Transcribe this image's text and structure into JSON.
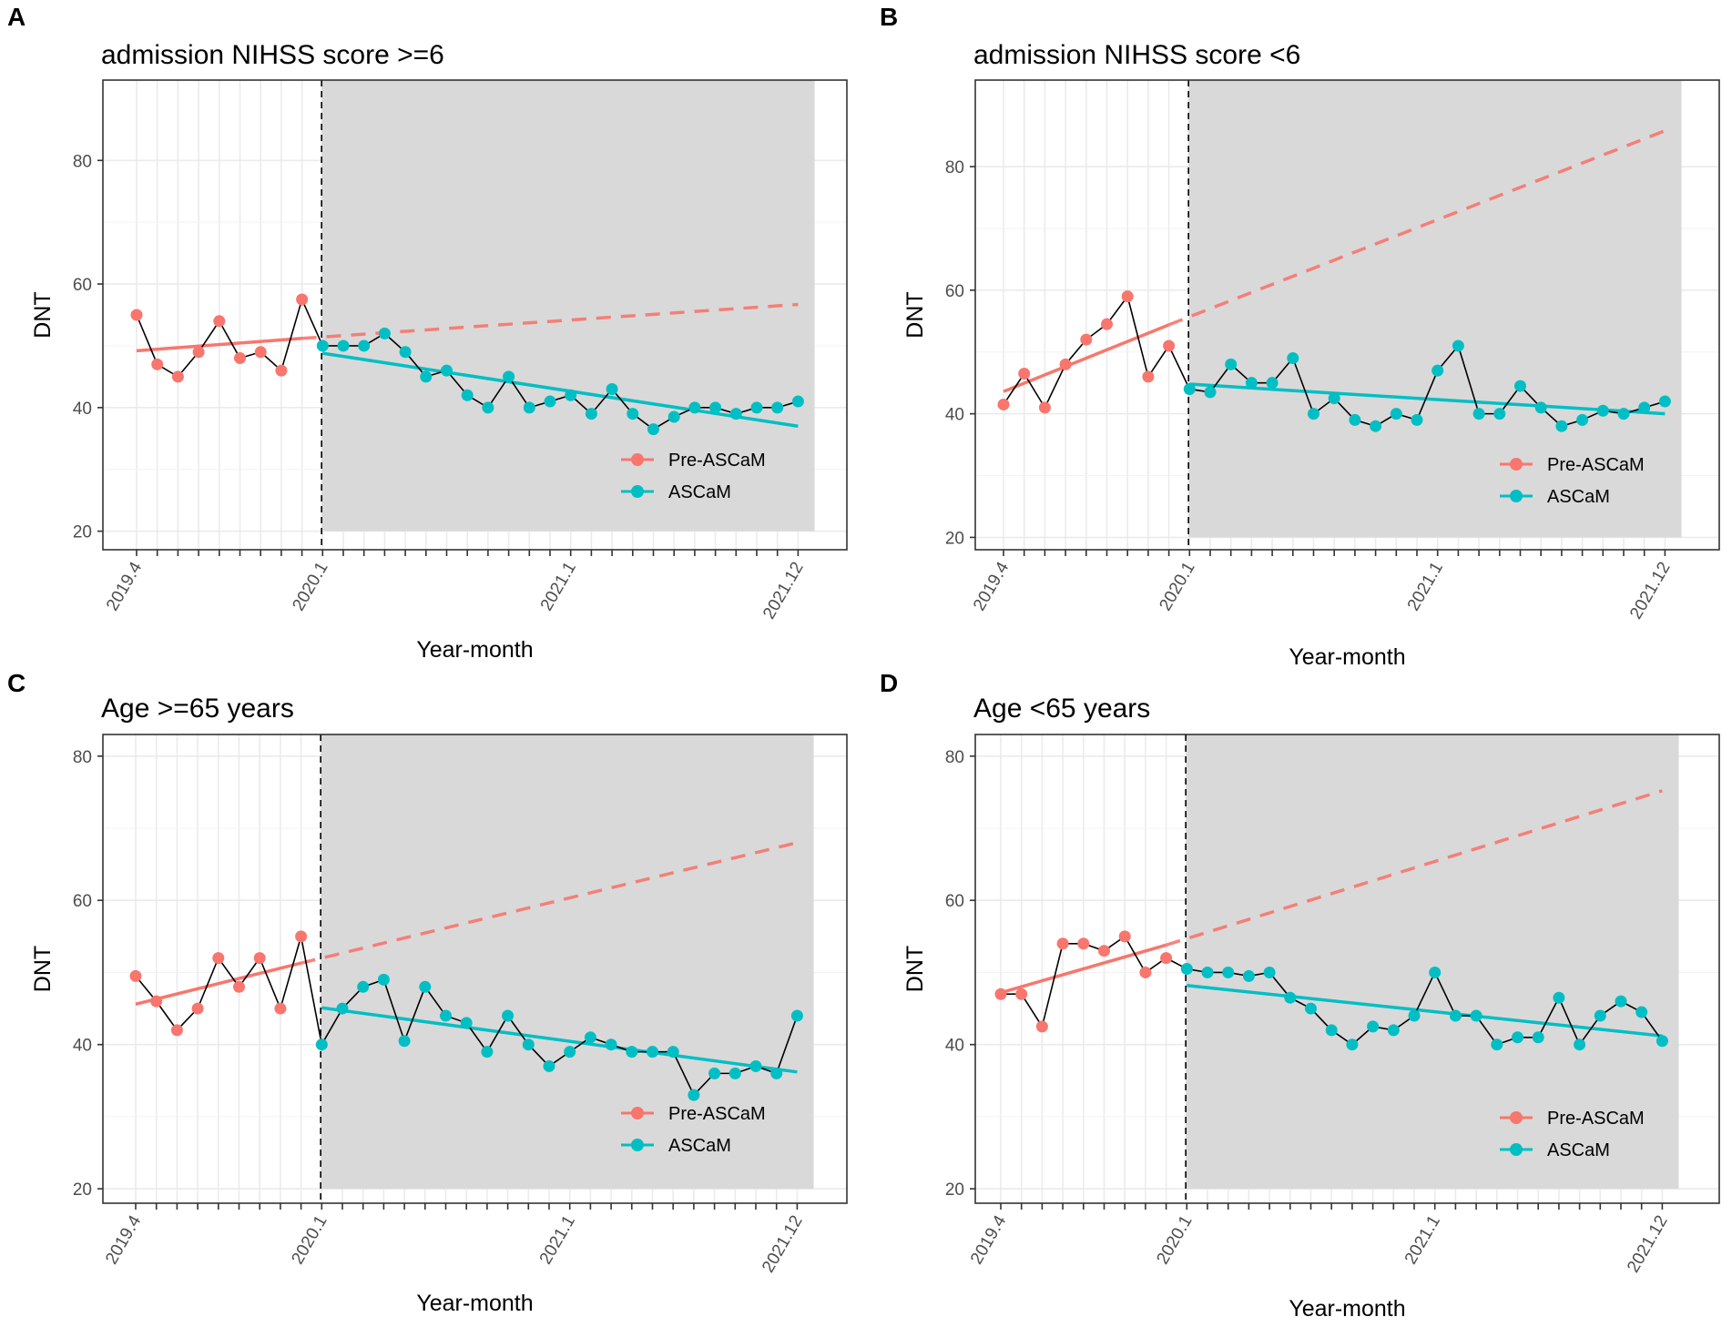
{
  "figure": {
    "xlabel": "Year-month",
    "ylabel": "DNT",
    "x_tick_labels": [
      "2019.4",
      "2020.1",
      "2021.1",
      "2021.12"
    ],
    "intervention_index": 9,
    "legend": [
      "Pre-ASCaM",
      "ASCaM"
    ],
    "colors": {
      "pre": "#f8766d",
      "post": "#00bfc4",
      "observed_line": "#000000",
      "shade": "#d9d9d9"
    }
  },
  "chart_data": [
    {
      "panel": "A",
      "type": "line",
      "title": "admission NIHSS score >=6",
      "xlabel": "Year-month",
      "ylabel": "DNT",
      "ylim": [
        17,
        93
      ],
      "yticks": [
        20,
        40,
        60,
        80
      ],
      "shade_ymin": 20,
      "x_ticks": [
        0,
        9,
        21,
        32
      ],
      "x_tick_labels": [
        "2019.4",
        "2020.1",
        "2021.1",
        "2021.12"
      ],
      "pre": [
        55,
        47,
        45,
        49,
        54,
        48,
        49,
        46,
        57.5
      ],
      "post": [
        50,
        50,
        50,
        52,
        49,
        45,
        46,
        42,
        40,
        45,
        40,
        41,
        42,
        39,
        43,
        39,
        36.5,
        38.5,
        40,
        40,
        39,
        40,
        40,
        41
      ],
      "pre_trend": [
        49.2,
        51.2
      ],
      "post_trend": [
        48.8,
        37
      ],
      "counterfactual_end": 56.7,
      "legend": [
        "Pre-ASCaM",
        "ASCaM"
      ]
    },
    {
      "panel": "B",
      "type": "line",
      "title": "admission NIHSS score <6",
      "xlabel": "Year-month",
      "ylabel": "DNT",
      "ylim": [
        18,
        94
      ],
      "yticks": [
        20,
        40,
        60,
        80
      ],
      "shade_ymin": 20,
      "x_ticks": [
        0,
        9,
        21,
        32
      ],
      "x_tick_labels": [
        "2019.4",
        "2020.1",
        "2021.1",
        "2021.12"
      ],
      "pre": [
        41.5,
        46.5,
        41,
        48,
        52,
        54.5,
        59,
        46,
        51
      ],
      "post": [
        44,
        43.5,
        48,
        45,
        45,
        49,
        40,
        42.5,
        39,
        38,
        40,
        39,
        47,
        51,
        40,
        40,
        44.5,
        41,
        38,
        39,
        40.5,
        40,
        41,
        42
      ],
      "pre_trend": [
        43.6,
        54.4
      ],
      "post_trend": [
        44.8,
        40
      ],
      "counterfactual_end": 85.8,
      "legend": [
        "Pre-ASCaM",
        "ASCaM"
      ]
    },
    {
      "panel": "C",
      "type": "line",
      "title": "Age >=65 years",
      "xlabel": "Year-month",
      "ylabel": "DNT",
      "ylim": [
        18,
        83
      ],
      "yticks": [
        20,
        40,
        60,
        80
      ],
      "shade_ymin": 20,
      "x_ticks": [
        0,
        9,
        21,
        32
      ],
      "x_tick_labels": [
        "2019.4",
        "2020.1",
        "2021.1",
        "2021.12"
      ],
      "pre": [
        49.5,
        46,
        42,
        45,
        52,
        48,
        52,
        45,
        55
      ],
      "post": [
        40,
        45,
        48,
        49,
        40.5,
        48,
        44,
        43,
        39,
        44,
        40,
        37,
        39,
        41,
        40,
        39,
        39,
        39,
        33,
        36,
        36,
        37,
        36,
        44
      ],
      "pre_trend": [
        45.6,
        51.3
      ],
      "post_trend": [
        45.1,
        36.2
      ],
      "counterfactual_end": 68,
      "legend": [
        "Pre-ASCaM",
        "ASCaM"
      ]
    },
    {
      "panel": "D",
      "type": "line",
      "title": "Age <65 years",
      "xlabel": "Year-month",
      "ylabel": "DNT",
      "ylim": [
        18,
        83
      ],
      "yticks": [
        20,
        40,
        60,
        80
      ],
      "shade_ymin": 20,
      "x_ticks": [
        0,
        9,
        21,
        32
      ],
      "x_tick_labels": [
        "2019.4",
        "2020.1",
        "2021.1",
        "2021.12"
      ],
      "pre": [
        47,
        47,
        42.5,
        54,
        54,
        53,
        55,
        50,
        52
      ],
      "post": [
        50.5,
        50,
        50,
        49.5,
        50,
        46.5,
        45,
        42,
        40,
        42.5,
        42,
        44,
        50,
        44,
        44,
        40,
        41,
        41,
        46.5,
        40,
        44,
        46,
        44.5,
        40.5
      ],
      "pre_trend": [
        47.2,
        53.8
      ],
      "post_trend": [
        48.2,
        41.2
      ],
      "counterfactual_end": 75.2,
      "legend": [
        "Pre-ASCaM",
        "ASCaM"
      ]
    }
  ]
}
